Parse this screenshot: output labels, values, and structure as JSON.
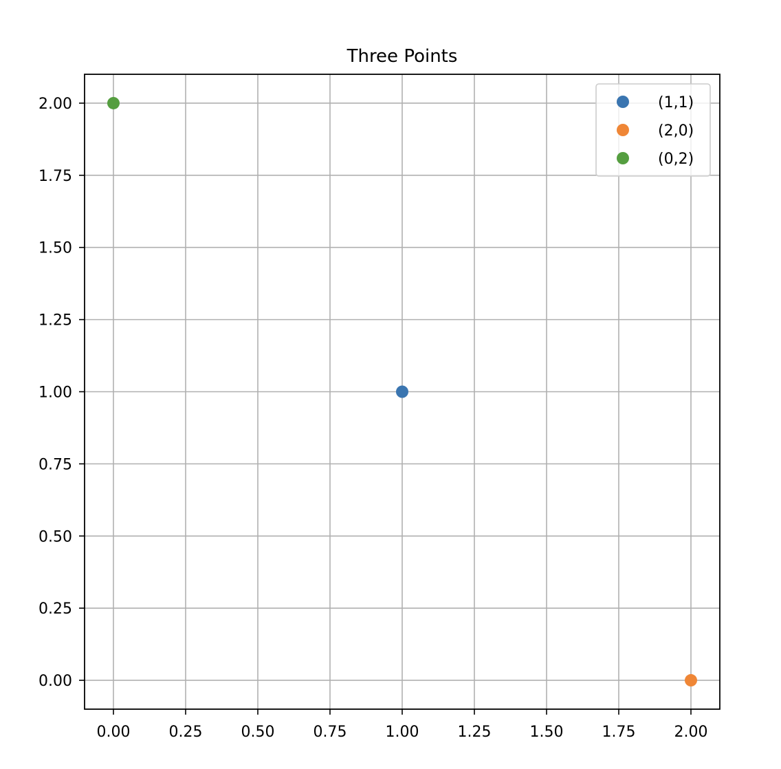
{
  "chart_data": {
    "type": "scatter",
    "title": "Three Points",
    "xlabel": "",
    "ylabel": "",
    "xlim": [
      -0.1,
      2.1
    ],
    "ylim": [
      -0.1,
      2.1
    ],
    "x_ticks": [
      0.0,
      0.25,
      0.5,
      0.75,
      1.0,
      1.25,
      1.5,
      1.75,
      2.0
    ],
    "y_ticks": [
      0.0,
      0.25,
      0.5,
      0.75,
      1.0,
      1.25,
      1.5,
      1.75,
      2.0
    ],
    "x_tick_labels": [
      "0.00",
      "0.25",
      "0.50",
      "0.75",
      "1.00",
      "1.25",
      "1.50",
      "1.75",
      "2.00"
    ],
    "y_tick_labels": [
      "0.00",
      "0.25",
      "0.50",
      "0.75",
      "1.00",
      "1.25",
      "1.50",
      "1.75",
      "2.00"
    ],
    "grid": true,
    "legend_position": "top-right",
    "series": [
      {
        "name": "(1,1)",
        "x": [
          1
        ],
        "y": [
          1
        ],
        "color": "#3a75b0"
      },
      {
        "name": "(2,0)",
        "x": [
          2
        ],
        "y": [
          0
        ],
        "color": "#ef8636"
      },
      {
        "name": "(0,2)",
        "x": [
          0
        ],
        "y": [
          2
        ],
        "color": "#559e40"
      }
    ]
  }
}
